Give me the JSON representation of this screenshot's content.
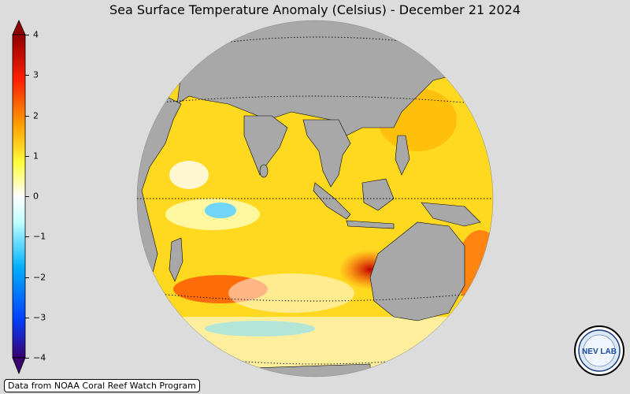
{
  "title": "Sea Surface Temperature Anomaly (Celsius) - December 21 2024",
  "colorbar": {
    "min": -4,
    "max": 4,
    "ticks": [
      {
        "value": 4,
        "label": "4"
      },
      {
        "value": 3,
        "label": "3"
      },
      {
        "value": 2,
        "label": "2"
      },
      {
        "value": 1,
        "label": "1"
      },
      {
        "value": 0,
        "label": "0"
      },
      {
        "value": -1,
        "label": "−1"
      },
      {
        "value": -2,
        "label": "−2"
      },
      {
        "value": -3,
        "label": "−3"
      },
      {
        "value": -4,
        "label": "−4"
      }
    ],
    "colors": [
      "#3a0070",
      "#0040ff",
      "#00b0ff",
      "#c0ffff",
      "#ffffff",
      "#ffff40",
      "#ffa000",
      "#ff2000",
      "#900000"
    ]
  },
  "map": {
    "land_color": "#a8a8a8",
    "ocean_warm": "#ffd000",
    "ocean_hot": "#e02000",
    "ocean_cool": "#60d0ff"
  },
  "credit": "Data from NOAA Coral Reef Watch Program",
  "logo_text": "NEV LAB"
}
